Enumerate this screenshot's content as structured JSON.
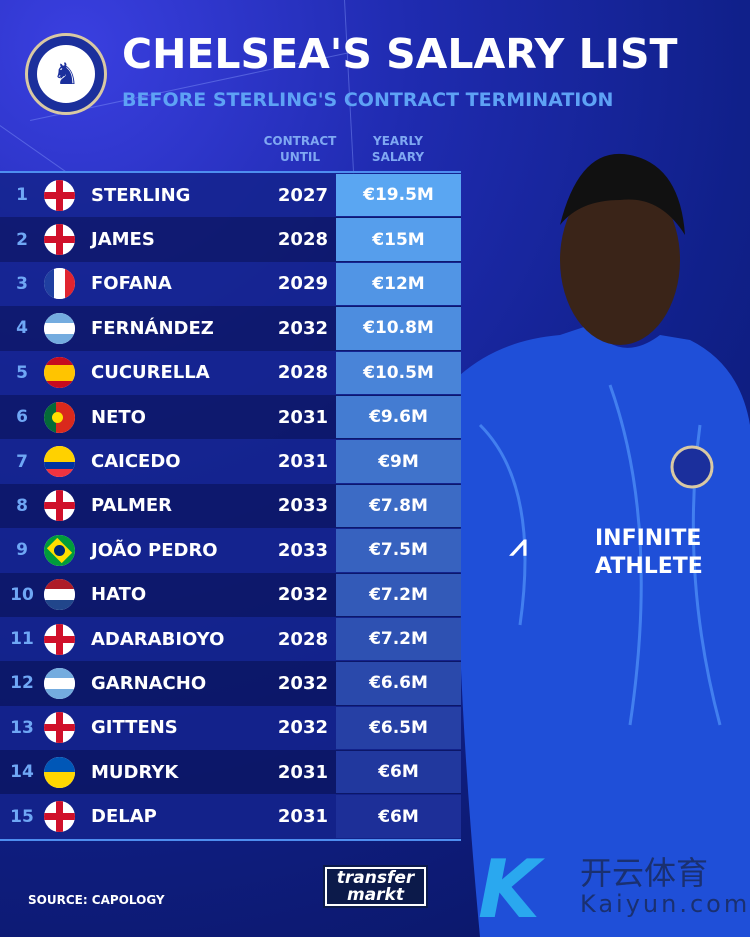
{
  "header": {
    "title": "CHELSEA'S SALARY LIST",
    "subtitle": "BEFORE STERLING'S CONTRACT TERMINATION",
    "logo_text": "CHELSEA FOOTBALL CLUB"
  },
  "columns": {
    "contract": [
      "CONTRACT",
      "UNTIL"
    ],
    "salary": [
      "YEARLY",
      "SALARY"
    ]
  },
  "players": [
    {
      "rank": "1",
      "flag": "england",
      "name": "STERLING",
      "until": "2027",
      "salary": "€19.5M"
    },
    {
      "rank": "2",
      "flag": "england",
      "name": "JAMES",
      "until": "2028",
      "salary": "€15M"
    },
    {
      "rank": "3",
      "flag": "france",
      "name": "FOFANA",
      "until": "2029",
      "salary": "€12M"
    },
    {
      "rank": "4",
      "flag": "argentina",
      "name": "FERNÁNDEZ",
      "until": "2032",
      "salary": "€10.8M"
    },
    {
      "rank": "5",
      "flag": "spain",
      "name": "CUCURELLA",
      "until": "2028",
      "salary": "€10.5M"
    },
    {
      "rank": "6",
      "flag": "portugal",
      "name": "NETO",
      "until": "2031",
      "salary": "€9.6M"
    },
    {
      "rank": "7",
      "flag": "ecuador",
      "name": "CAICEDO",
      "until": "2031",
      "salary": "€9M"
    },
    {
      "rank": "8",
      "flag": "england",
      "name": "PALMER",
      "until": "2033",
      "salary": "€7.8M"
    },
    {
      "rank": "9",
      "flag": "brazil",
      "name": "JOÃO PEDRO",
      "until": "2033",
      "salary": "€7.5M"
    },
    {
      "rank": "10",
      "flag": "netherlands",
      "name": "HATO",
      "until": "2032",
      "salary": "€7.2M"
    },
    {
      "rank": "11",
      "flag": "england",
      "name": "ADARABIOYO",
      "until": "2028",
      "salary": "€7.2M"
    },
    {
      "rank": "12",
      "flag": "argentina",
      "name": "GARNACHO",
      "until": "2032",
      "salary": "€6.6M"
    },
    {
      "rank": "13",
      "flag": "england",
      "name": "GITTENS",
      "until": "2032",
      "salary": "€6.5M"
    },
    {
      "rank": "14",
      "flag": "ukraine",
      "name": "MUDRYK",
      "until": "2031",
      "salary": "€6M"
    },
    {
      "rank": "15",
      "flag": "england",
      "name": "DELAP",
      "until": "2031",
      "salary": "€6M"
    }
  ],
  "footer": {
    "source": "SOURCE: CAPOLOGY",
    "transfermarkt": [
      "transfer",
      "markt"
    ],
    "watermark": [
      "开云体育",
      "Kaiyun.com"
    ]
  },
  "colors": {
    "salary_top": "#5aa6f2",
    "salary_bottom": "#1d2f98",
    "accent": "#5ea2f5"
  }
}
